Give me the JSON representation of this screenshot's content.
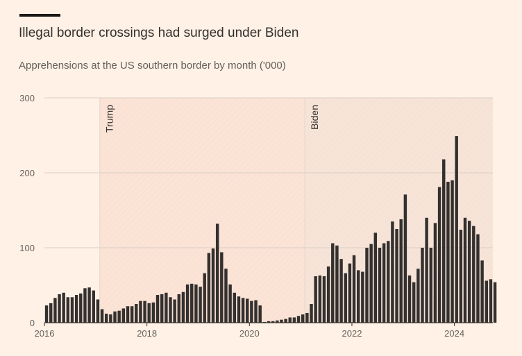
{
  "header": {
    "title": "Illegal border crossings had surged under Biden",
    "subtitle": "Apprehensions at the US southern border by month ('000)"
  },
  "colors": {
    "background": "#fff1e5",
    "bar": "#33302e",
    "gridline": "#d9cec6",
    "trump_shade": "#fbe3d6",
    "biden_shade": "#f7e4d8"
  },
  "chart_data": {
    "type": "bar",
    "title": "Illegal border crossings had surged under Biden",
    "subtitle": "Apprehensions at the US southern border by month ('000)",
    "xlabel": "",
    "ylabel": "",
    "ylim": [
      0,
      300
    ],
    "yticks": [
      0,
      100,
      200,
      300
    ],
    "xticks": [
      2016,
      2018,
      2020,
      2022,
      2024
    ],
    "xlim": [
      2016.0,
      2024.75
    ],
    "grid": true,
    "periods": [
      {
        "label": "Trump",
        "start": 2017.08,
        "end": 2021.08
      },
      {
        "label": "Biden",
        "start": 2021.08,
        "end": 2024.75
      }
    ],
    "series": [
      {
        "start": 2016.0,
        "step": 0.0833333,
        "values": [
          23,
          26,
          33,
          38,
          40,
          34,
          34,
          37,
          39,
          46,
          47,
          43,
          31,
          18,
          12,
          11,
          15,
          16,
          19,
          22,
          22,
          25,
          29,
          29,
          26,
          27,
          37,
          38,
          40,
          34,
          31,
          38,
          41,
          51,
          52,
          51,
          48,
          66,
          93,
          99,
          132,
          94,
          72,
          51,
          40,
          35,
          33,
          32,
          29,
          30,
          23,
          1,
          2,
          2,
          3,
          4,
          5,
          7,
          7,
          9,
          11,
          13,
          25,
          62,
          63,
          62,
          75,
          106,
          103,
          85,
          66,
          79,
          90,
          70,
          68,
          100,
          105,
          120,
          100,
          106,
          109,
          135,
          125,
          138,
          171,
          63,
          54,
          72,
          100,
          140,
          100,
          133,
          181,
          218,
          188,
          190,
          249,
          124,
          140,
          136,
          129,
          118,
          83,
          56,
          58,
          54
        ]
      }
    ]
  }
}
